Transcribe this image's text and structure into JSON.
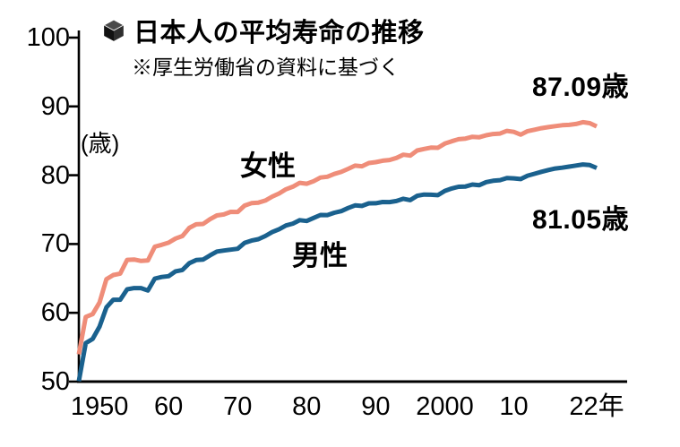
{
  "header": {
    "title": "日本人の平均寿命の推移",
    "subtitle": "※厚生労働省の資料に基づく"
  },
  "colors": {
    "female_line": "#ef8d79",
    "male_line": "#1a618e",
    "axis": "#000000",
    "background": "#ffffff"
  },
  "chart_data": {
    "type": "line",
    "title": "日本人の平均寿命の推移",
    "source_note": "※厚生労働省の資料に基づく",
    "ylabel": "(歳)",
    "xlabel": "",
    "ylim": [
      50,
      100
    ],
    "xlim": [
      1947,
      2022
    ],
    "grid": false,
    "legend_position": "inline-annotations",
    "ytick_values": [
      100,
      90,
      80,
      70,
      60,
      50
    ],
    "ytick_labels": [
      "100",
      "90",
      "80",
      "70",
      "60",
      "50"
    ],
    "xtick_values": [
      1950,
      1960,
      1970,
      1980,
      1990,
      2000,
      2010,
      2022
    ],
    "xtick_labels": [
      "1950",
      "60",
      "70",
      "80",
      "90",
      "2000",
      "10",
      "22年"
    ],
    "x": [
      1947,
      1948,
      1949,
      1950,
      1951,
      1952,
      1953,
      1954,
      1955,
      1956,
      1957,
      1958,
      1959,
      1960,
      1961,
      1962,
      1963,
      1964,
      1965,
      1966,
      1967,
      1968,
      1969,
      1970,
      1971,
      1972,
      1973,
      1974,
      1975,
      1976,
      1977,
      1978,
      1979,
      1980,
      1981,
      1982,
      1983,
      1984,
      1985,
      1986,
      1987,
      1988,
      1989,
      1990,
      1991,
      1992,
      1993,
      1994,
      1995,
      1996,
      1997,
      1998,
      1999,
      2000,
      2001,
      2002,
      2003,
      2004,
      2005,
      2006,
      2007,
      2008,
      2009,
      2010,
      2011,
      2012,
      2013,
      2014,
      2015,
      2016,
      2017,
      2018,
      2019,
      2020,
      2021,
      2022
    ],
    "series": [
      {
        "name": "女性",
        "color": "#ef8d79",
        "final_value": 87.09,
        "end_label": "87.09歳",
        "values": [
          53.96,
          59.4,
          59.8,
          61.5,
          64.9,
          65.5,
          65.7,
          67.69,
          67.75,
          67.54,
          67.6,
          69.61,
          69.88,
          70.19,
          70.79,
          71.16,
          72.34,
          72.87,
          72.92,
          73.61,
          74.15,
          74.3,
          74.67,
          74.66,
          75.58,
          75.94,
          76.02,
          76.31,
          76.89,
          77.35,
          77.95,
          78.33,
          78.89,
          78.76,
          79.13,
          79.66,
          79.78,
          80.18,
          80.48,
          80.93,
          81.39,
          81.3,
          81.77,
          81.9,
          82.11,
          82.22,
          82.51,
          82.98,
          82.85,
          83.59,
          83.82,
          84.01,
          83.99,
          84.6,
          84.93,
          85.23,
          85.33,
          85.59,
          85.52,
          85.81,
          85.99,
          86.05,
          86.44,
          86.3,
          85.9,
          86.41,
          86.61,
          86.83,
          86.99,
          87.14,
          87.26,
          87.32,
          87.45,
          87.71,
          87.57,
          87.09
        ]
      },
      {
        "name": "男性",
        "color": "#1a618e",
        "final_value": 81.05,
        "end_label": "81.05歳",
        "values": [
          50.06,
          55.6,
          56.2,
          58.0,
          60.8,
          61.9,
          61.9,
          63.41,
          63.6,
          63.59,
          63.24,
          64.98,
          65.21,
          65.32,
          66.03,
          66.23,
          67.21,
          67.67,
          67.74,
          68.35,
          68.91,
          69.05,
          69.18,
          69.31,
          70.17,
          70.5,
          70.7,
          71.16,
          71.73,
          72.15,
          72.69,
          72.97,
          73.46,
          73.35,
          73.79,
          74.22,
          74.2,
          74.54,
          74.78,
          75.23,
          75.61,
          75.54,
          75.91,
          75.92,
          76.11,
          76.09,
          76.25,
          76.57,
          76.38,
          77.01,
          77.19,
          77.16,
          77.1,
          77.72,
          78.07,
          78.32,
          78.36,
          78.64,
          78.56,
          79.0,
          79.19,
          79.29,
          79.59,
          79.55,
          79.44,
          79.94,
          80.21,
          80.5,
          80.75,
          80.98,
          81.09,
          81.25,
          81.41,
          81.56,
          81.47,
          81.05
        ]
      }
    ]
  }
}
